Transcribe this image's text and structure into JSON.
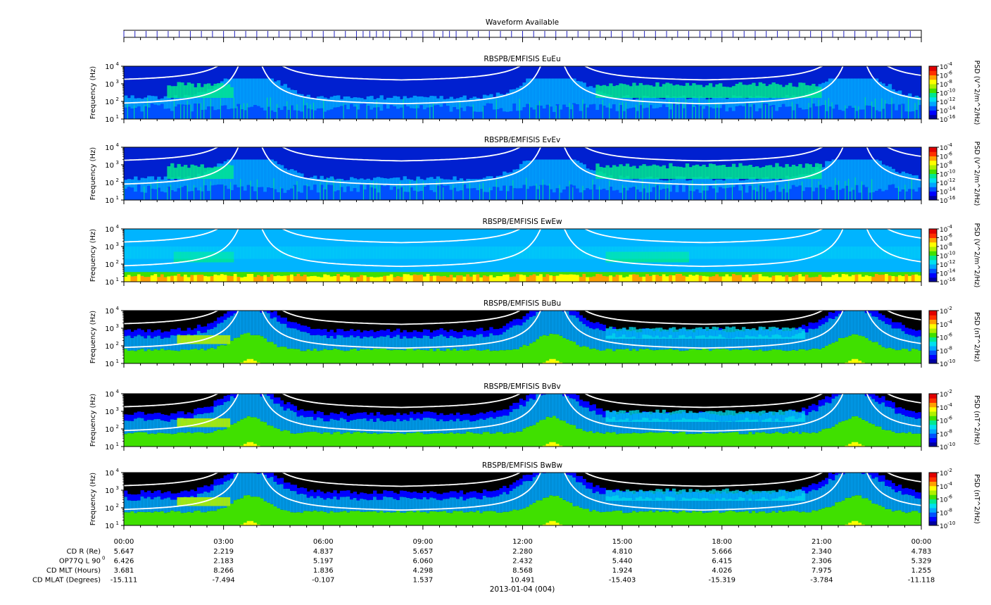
{
  "waveform": {
    "title": "Waveform Available",
    "segments_hours": [
      0,
      0.333,
      0.667,
      1,
      1.333,
      1.667,
      2,
      2.333,
      2.667,
      3,
      3.333,
      3.667,
      4,
      4.333,
      4.667,
      5,
      5.333,
      5.667,
      6,
      6.333,
      6.667,
      7,
      7.2,
      7.4,
      7.6,
      7.8,
      8,
      8.333,
      8.667,
      9,
      9.333,
      9.6,
      9.8,
      10,
      10.333,
      10.667,
      11,
      11.333,
      11.667,
      12,
      12.333,
      12.667,
      13,
      13.333,
      13.667,
      14,
      14.333,
      14.667,
      15,
      15.333,
      15.667,
      16,
      16.333,
      16.667,
      17,
      17.333,
      17.667,
      18,
      18.333,
      18.667,
      19,
      19.333,
      19.667,
      20,
      20.333,
      20.667,
      21,
      21.333,
      21.667,
      22,
      22.333,
      22.667,
      23,
      23.333,
      23.667
    ]
  },
  "colors": {
    "colormap": [
      "#0000a0",
      "#0000ff",
      "#0050ff",
      "#00a8ff",
      "#00e0f0",
      "#00e890",
      "#40e000",
      "#b0f000",
      "#ffff00",
      "#ffa000",
      "#ff3000",
      "#e00000"
    ],
    "background_e": "#0020d0",
    "background_e_light": "#00b4ff",
    "background_b": "#000000",
    "curve": "#ffffff",
    "waveform_tick": "#2020c0"
  },
  "chart_data": [
    {
      "type": "heatmap",
      "title": "RBSPB/EMFISIS  EuEu",
      "ylabel": "Frequency (Hz)",
      "ylim": [
        10,
        10000
      ],
      "yscale": "log",
      "xlim_hours": [
        0,
        24
      ],
      "y_ticks": [
        "10",
        "10",
        "10",
        "10"
      ],
      "y_tick_exps": [
        "1",
        "2",
        "3",
        "4"
      ],
      "colorbar": {
        "label": "PSD (V^2/m^2/Hz)",
        "ticks": [
          "10",
          "10",
          "10",
          "10",
          "10",
          "10",
          "10"
        ],
        "exps": [
          "-4",
          "-6",
          "-8",
          "-10",
          "-12",
          "-14",
          "-16"
        ]
      },
      "kind": "E"
    },
    {
      "type": "heatmap",
      "title": "RBSPB/EMFISIS  EvEv",
      "ylabel": "Frequency (Hz)",
      "ylim": [
        10,
        10000
      ],
      "yscale": "log",
      "xlim_hours": [
        0,
        24
      ],
      "y_ticks": [
        "10",
        "10",
        "10",
        "10"
      ],
      "y_tick_exps": [
        "1",
        "2",
        "3",
        "4"
      ],
      "colorbar": {
        "label": "PSD (V^2/m^2/Hz)",
        "ticks": [
          "10",
          "10",
          "10",
          "10",
          "10",
          "10",
          "10"
        ],
        "exps": [
          "-4",
          "-6",
          "-8",
          "-10",
          "-12",
          "-14",
          "-16"
        ]
      },
      "kind": "E"
    },
    {
      "type": "heatmap",
      "title": "RBSPB/EMFISIS  EwEw",
      "ylabel": "Frequency (Hz)",
      "ylim": [
        10,
        10000
      ],
      "yscale": "log",
      "xlim_hours": [
        0,
        24
      ],
      "y_ticks": [
        "10",
        "10",
        "10",
        "10"
      ],
      "y_tick_exps": [
        "1",
        "2",
        "3",
        "4"
      ],
      "colorbar": {
        "label": "PSD (V^2/m^2/Hz)",
        "ticks": [
          "10",
          "10",
          "10",
          "10",
          "10",
          "10",
          "10"
        ],
        "exps": [
          "-4",
          "-6",
          "-8",
          "-10",
          "-12",
          "-14",
          "-16"
        ]
      },
      "kind": "Ew"
    },
    {
      "type": "heatmap",
      "title": "RBSPB/EMFISIS  BuBu",
      "ylabel": "Frequency (Hz)",
      "ylim": [
        10,
        10000
      ],
      "yscale": "log",
      "xlim_hours": [
        0,
        24
      ],
      "y_ticks": [
        "10",
        "10",
        "10",
        "10"
      ],
      "y_tick_exps": [
        "1",
        "2",
        "3",
        "4"
      ],
      "colorbar": {
        "label": "PSD (nT^2/Hz)",
        "ticks": [
          "10",
          "10",
          "10",
          "10",
          "10"
        ],
        "exps": [
          "-2",
          "-4",
          "-6",
          "-8",
          "-10"
        ]
      },
      "kind": "B"
    },
    {
      "type": "heatmap",
      "title": "RBSPB/EMFISIS  BvBv",
      "ylabel": "Frequency (Hz)",
      "ylim": [
        10,
        10000
      ],
      "yscale": "log",
      "xlim_hours": [
        0,
        24
      ],
      "y_ticks": [
        "10",
        "10",
        "10",
        "10"
      ],
      "y_tick_exps": [
        "1",
        "2",
        "3",
        "4"
      ],
      "colorbar": {
        "label": "PSD (nT^2/Hz)",
        "ticks": [
          "10",
          "10",
          "10",
          "10",
          "10"
        ],
        "exps": [
          "-2",
          "-4",
          "-6",
          "-8",
          "-10"
        ]
      },
      "kind": "B"
    },
    {
      "type": "heatmap",
      "title": "RBSPB/EMFISIS  BwBw",
      "ylabel": "Frequency (Hz)",
      "ylim": [
        10,
        10000
      ],
      "yscale": "log",
      "xlim_hours": [
        0,
        24
      ],
      "y_ticks": [
        "10",
        "10",
        "10",
        "10"
      ],
      "y_tick_exps": [
        "1",
        "2",
        "3",
        "4"
      ],
      "colorbar": {
        "label": "PSD (nT^2/Hz)",
        "ticks": [
          "10",
          "10",
          "10",
          "10",
          "10"
        ],
        "exps": [
          "-2",
          "-4",
          "-6",
          "-8",
          "-10"
        ]
      },
      "kind": "B"
    }
  ],
  "x_axis": {
    "ticks_hours": [
      0,
      3,
      6,
      9,
      12,
      15,
      18,
      21,
      24
    ],
    "tick_labels": [
      "00:00",
      "03:00",
      "06:00",
      "09:00",
      "12:00",
      "15:00",
      "18:00",
      "21:00",
      "00:00"
    ],
    "date_label": "2013-01-04 (004)"
  },
  "ephemeris": {
    "rows": [
      {
        "label": "CD R (Re)",
        "values": [
          "5.647",
          "2.219",
          "4.837",
          "5.657",
          "2.280",
          "4.810",
          "5.666",
          "2.340",
          "4.783"
        ]
      },
      {
        "label": "OP77Q L 90",
        "label_sup": "0",
        "values": [
          "6.426",
          "2.183",
          "5.197",
          "6.060",
          "2.432",
          "5.440",
          "6.415",
          "2.306",
          "5.329"
        ]
      },
      {
        "label": "CD MLT (Hours)",
        "values": [
          "3.681",
          "8.266",
          "1.836",
          "4.298",
          "8.568",
          "1.924",
          "4.026",
          "7.975",
          "1.255"
        ]
      },
      {
        "label": "CD MLAT (Degrees)",
        "values": [
          "-15.111",
          "-7.494",
          "-0.107",
          "1.537",
          "10.491",
          "-15.403",
          "-15.319",
          "-3.784",
          "-11.118"
        ]
      }
    ]
  }
}
